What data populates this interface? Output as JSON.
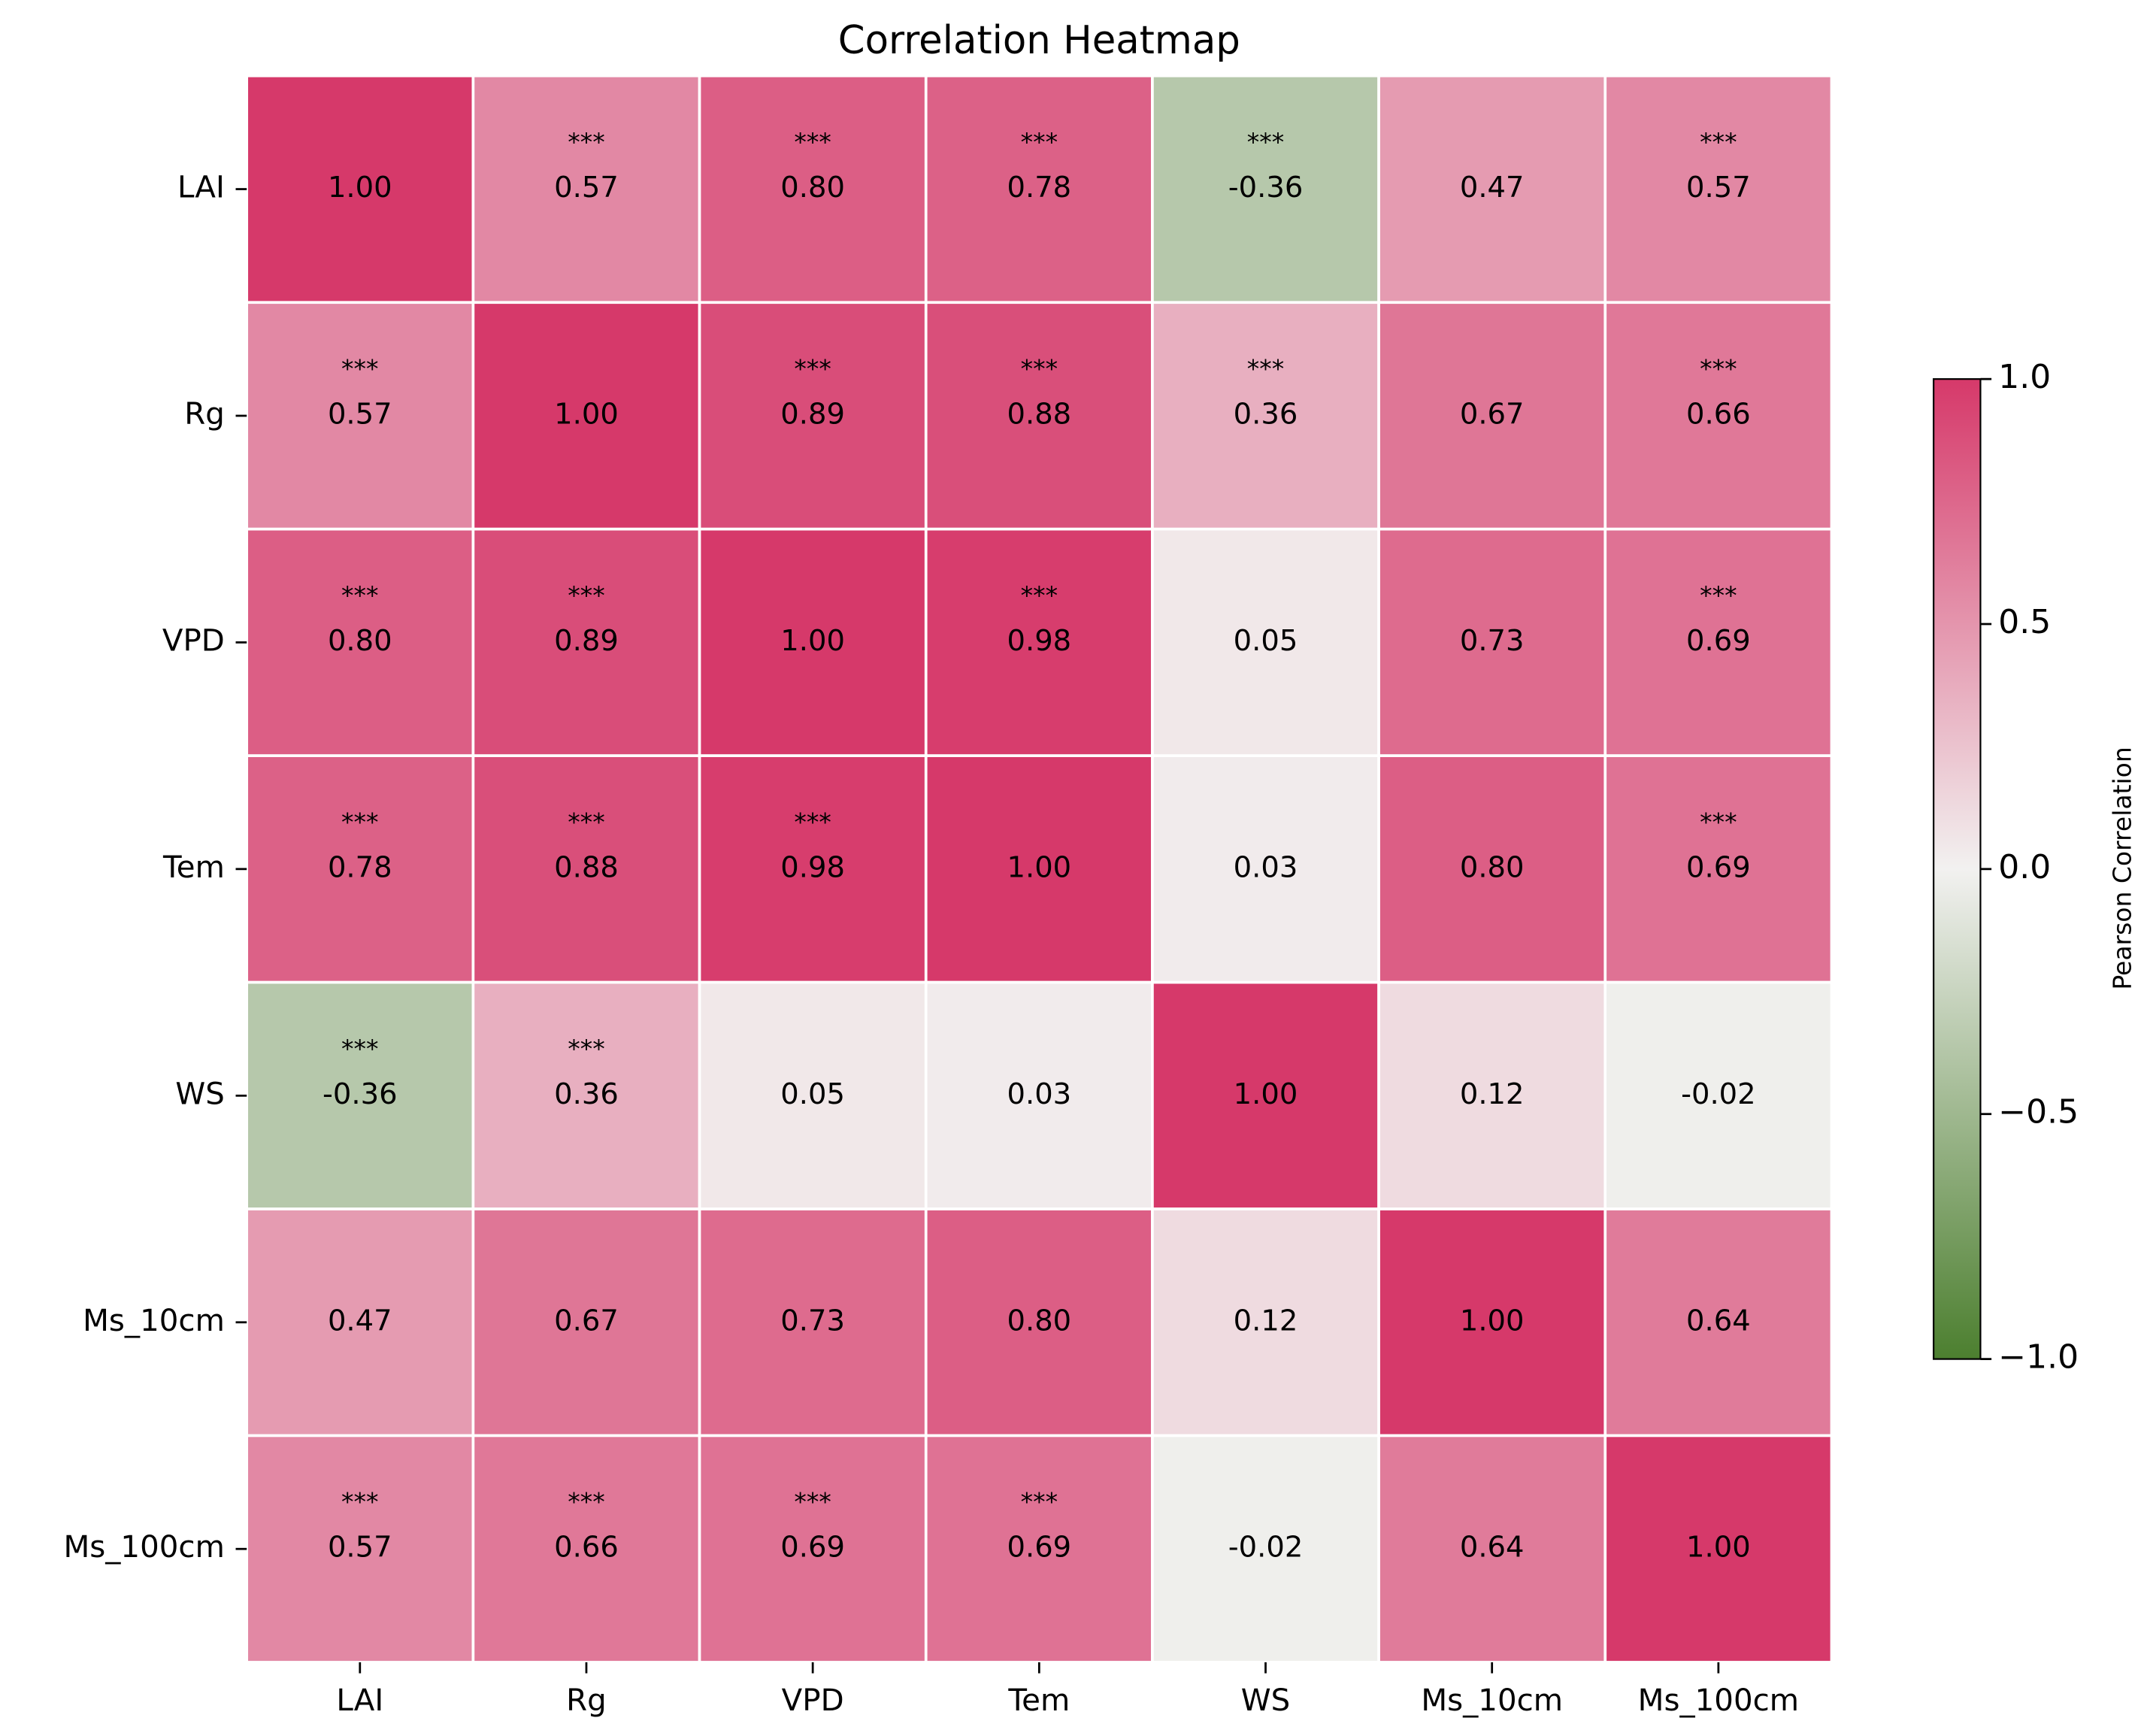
{
  "chart_data": {
    "type": "heatmap",
    "title": "Correlation Heatmap",
    "x_categories": [
      "LAI",
      "Rg",
      "VPD",
      "Tem",
      "WS",
      "Ms_10cm",
      "Ms_100cm"
    ],
    "y_categories": [
      "LAI",
      "Rg",
      "VPD",
      "Tem",
      "WS",
      "Ms_10cm",
      "Ms_100cm"
    ],
    "values": [
      [
        1.0,
        0.57,
        0.8,
        0.78,
        -0.36,
        0.47,
        0.57
      ],
      [
        0.57,
        1.0,
        0.89,
        0.88,
        0.36,
        0.67,
        0.66
      ],
      [
        0.8,
        0.89,
        1.0,
        0.98,
        0.05,
        0.73,
        0.69
      ],
      [
        0.78,
        0.88,
        0.98,
        1.0,
        0.03,
        0.8,
        0.69
      ],
      [
        -0.36,
        0.36,
        0.05,
        0.03,
        1.0,
        0.12,
        -0.02
      ],
      [
        0.47,
        0.67,
        0.73,
        0.8,
        0.12,
        1.0,
        0.64
      ],
      [
        0.57,
        0.66,
        0.69,
        0.69,
        -0.02,
        0.64,
        1.0
      ]
    ],
    "value_labels": [
      [
        "1.00",
        "0.57",
        "0.80",
        "0.78",
        "-0.36",
        "0.47",
        "0.57"
      ],
      [
        "0.57",
        "1.00",
        "0.89",
        "0.88",
        "0.36",
        "0.67",
        "0.66"
      ],
      [
        "0.80",
        "0.89",
        "1.00",
        "0.98",
        "0.05",
        "0.73",
        "0.69"
      ],
      [
        "0.78",
        "0.88",
        "0.98",
        "1.00",
        "0.03",
        "0.80",
        "0.69"
      ],
      [
        "-0.36",
        "0.36",
        "0.05",
        "0.03",
        "1.00",
        "0.12",
        "-0.02"
      ],
      [
        "0.47",
        "0.67",
        "0.73",
        "0.80",
        "0.12",
        "1.00",
        "0.64"
      ],
      [
        "0.57",
        "0.66",
        "0.69",
        "0.69",
        "-0.02",
        "0.64",
        "1.00"
      ]
    ],
    "significance": [
      [
        null,
        "***",
        "***",
        "***",
        "***",
        null,
        "***"
      ],
      [
        "***",
        null,
        "***",
        "***",
        "***",
        null,
        "***"
      ],
      [
        "***",
        "***",
        null,
        "***",
        null,
        null,
        "***"
      ],
      [
        "***",
        "***",
        "***",
        null,
        null,
        null,
        "***"
      ],
      [
        "***",
        "***",
        null,
        null,
        null,
        null,
        null
      ],
      [
        null,
        null,
        null,
        null,
        null,
        null,
        null
      ],
      [
        "***",
        "***",
        "***",
        "***",
        null,
        null,
        null
      ]
    ],
    "colormap": [
      "#4c7f2f",
      "#f2f1f0",
      "#d6396a"
    ],
    "colorbar_label": "Pearson Correlation",
    "colorbar_lim": [
      -1,
      1
    ],
    "colorbar_ticks": [
      {
        "value": -1,
        "label": "−1.0"
      },
      {
        "value": -0.5,
        "label": "−0.5"
      },
      {
        "value": 0,
        "label": "0.0"
      },
      {
        "value": 0.5,
        "label": "0.5"
      },
      {
        "value": 1,
        "label": "1.0"
      }
    ]
  }
}
